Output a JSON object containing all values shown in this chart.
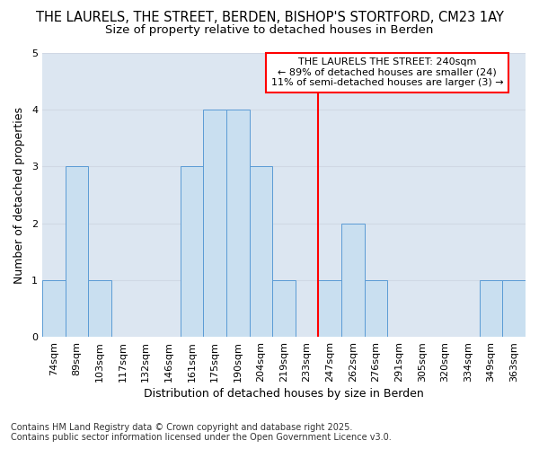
{
  "title_line1": "THE LAURELS, THE STREET, BERDEN, BISHOP'S STORTFORD, CM23 1AY",
  "title_line2": "Size of property relative to detached houses in Berden",
  "xlabel": "Distribution of detached houses by size in Berden",
  "ylabel": "Number of detached properties",
  "footnote": "Contains HM Land Registry data © Crown copyright and database right 2025.\nContains public sector information licensed under the Open Government Licence v3.0.",
  "categories": [
    "74sqm",
    "89sqm",
    "103sqm",
    "117sqm",
    "132sqm",
    "146sqm",
    "161sqm",
    "175sqm",
    "190sqm",
    "204sqm",
    "219sqm",
    "233sqm",
    "247sqm",
    "262sqm",
    "276sqm",
    "291sqm",
    "305sqm",
    "320sqm",
    "334sqm",
    "349sqm",
    "363sqm"
  ],
  "values": [
    1,
    3,
    1,
    0,
    0,
    0,
    3,
    4,
    4,
    3,
    1,
    0,
    1,
    2,
    1,
    0,
    0,
    0,
    0,
    1,
    1
  ],
  "bar_color": "#c9dff0",
  "bar_edge_color": "#5b9bd5",
  "grid_color": "#d0d8e4",
  "fig_bg_color": "#ffffff",
  "plot_bg_color": "#dce6f1",
  "red_line_x": 12.5,
  "annotation_text": "THE LAURELS THE STREET: 240sqm\n← 89% of detached houses are smaller (24)\n11% of semi-detached houses are larger (3) →",
  "annotation_box_color": "white",
  "annotation_border_color": "red",
  "ylim": [
    0,
    5
  ],
  "yticks": [
    0,
    1,
    2,
    3,
    4,
    5
  ],
  "title_fontsize": 10.5,
  "subtitle_fontsize": 9.5,
  "axis_label_fontsize": 9,
  "tick_fontsize": 8,
  "annotation_fontsize": 8,
  "footnote_fontsize": 7
}
